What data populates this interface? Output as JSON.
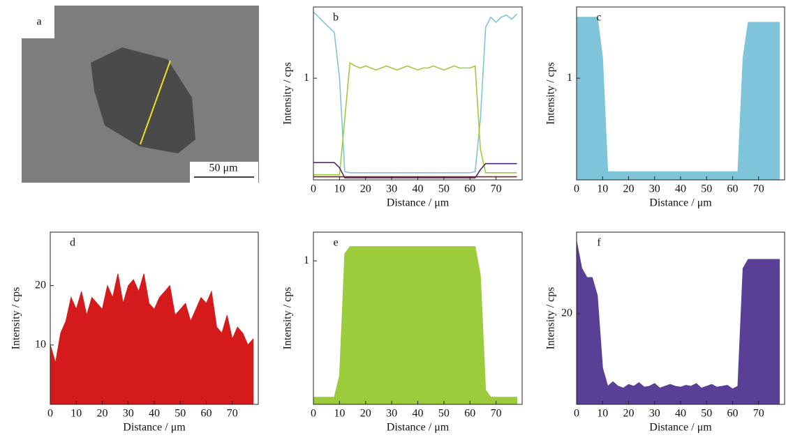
{
  "image_panel": {
    "label": "a",
    "scale_bar": "50 μm"
  },
  "chart_data": [
    {
      "type": "line",
      "label": "b",
      "x_label": "Distance / μm",
      "y_label": "Intensity / cps",
      "xlim": [
        0,
        80
      ],
      "xticks": [
        0,
        10,
        20,
        30,
        40,
        50,
        60,
        70
      ],
      "ylim": [
        0,
        1.7
      ],
      "yticks": [
        1
      ],
      "x": [
        0,
        2,
        4,
        6,
        8,
        10,
        12,
        14,
        16,
        18,
        20,
        22,
        24,
        26,
        28,
        30,
        32,
        34,
        36,
        38,
        40,
        42,
        44,
        46,
        48,
        50,
        52,
        54,
        56,
        58,
        60,
        62,
        64,
        66,
        68,
        70,
        72,
        74,
        76,
        78
      ],
      "series": [
        {
          "color": "#7fc4d8",
          "values": [
            1.65,
            1.6,
            1.55,
            1.5,
            1.45,
            1.0,
            0.08,
            0.07,
            0.07,
            0.07,
            0.07,
            0.07,
            0.07,
            0.07,
            0.07,
            0.07,
            0.07,
            0.07,
            0.07,
            0.07,
            0.07,
            0.07,
            0.07,
            0.07,
            0.07,
            0.07,
            0.07,
            0.07,
            0.07,
            0.07,
            0.07,
            0.08,
            0.6,
            1.5,
            1.6,
            1.55,
            1.6,
            1.62,
            1.58,
            1.63
          ]
        },
        {
          "color": "#9ccc3c",
          "values": [
            0.05,
            0.05,
            0.05,
            0.05,
            0.05,
            0.05,
            0.6,
            1.15,
            1.12,
            1.1,
            1.12,
            1.1,
            1.08,
            1.1,
            1.12,
            1.1,
            1.08,
            1.1,
            1.12,
            1.1,
            1.08,
            1.1,
            1.1,
            1.12,
            1.1,
            1.08,
            1.1,
            1.12,
            1.1,
            1.1,
            1.1,
            1.12,
            0.3,
            0.07,
            0.07,
            0.07,
            0.07,
            0.07,
            0.07,
            0.07
          ]
        },
        {
          "color": "#4b2a7a",
          "values": [
            0.17,
            0.17,
            0.17,
            0.17,
            0.17,
            0.12,
            0.02,
            0.02,
            0.02,
            0.02,
            0.02,
            0.02,
            0.02,
            0.02,
            0.02,
            0.02,
            0.02,
            0.02,
            0.02,
            0.02,
            0.02,
            0.02,
            0.02,
            0.02,
            0.02,
            0.02,
            0.02,
            0.02,
            0.02,
            0.02,
            0.02,
            0.02,
            0.1,
            0.16,
            0.16,
            0.16,
            0.16,
            0.16,
            0.16,
            0.16
          ]
        },
        {
          "color": "#8b1a1a",
          "values": [
            0.03,
            0.03,
            0.03,
            0.03,
            0.03,
            0.03,
            0.03,
            0.03,
            0.03,
            0.03,
            0.03,
            0.03,
            0.03,
            0.03,
            0.03,
            0.03,
            0.03,
            0.03,
            0.03,
            0.03,
            0.03,
            0.03,
            0.03,
            0.03,
            0.03,
            0.03,
            0.03,
            0.03,
            0.03,
            0.03,
            0.03,
            0.03,
            0.03,
            0.03,
            0.03,
            0.03,
            0.03,
            0.03,
            0.03,
            0.03
          ]
        }
      ]
    },
    {
      "type": "area",
      "label": "c",
      "x_label": "Distance / μm",
      "y_label": "Intensity / cps",
      "xlim": [
        0,
        80
      ],
      "xticks": [
        0,
        10,
        20,
        30,
        40,
        50,
        60,
        70
      ],
      "ylim": [
        0,
        1.7
      ],
      "yticks": [
        1
      ],
      "color": "#7fc4d8",
      "x": [
        0,
        2,
        4,
        6,
        8,
        10,
        12,
        14,
        16,
        18,
        20,
        22,
        24,
        26,
        28,
        30,
        32,
        34,
        36,
        38,
        40,
        42,
        44,
        46,
        48,
        50,
        52,
        54,
        56,
        58,
        60,
        62,
        64,
        66,
        68,
        70,
        72,
        74,
        76,
        78
      ],
      "values": [
        1.6,
        1.6,
        1.6,
        1.6,
        1.6,
        1.2,
        0.08,
        0.08,
        0.08,
        0.08,
        0.08,
        0.08,
        0.08,
        0.08,
        0.08,
        0.08,
        0.08,
        0.08,
        0.08,
        0.08,
        0.08,
        0.08,
        0.08,
        0.08,
        0.08,
        0.08,
        0.08,
        0.08,
        0.08,
        0.08,
        0.08,
        0.08,
        1.2,
        1.55,
        1.55,
        1.55,
        1.55,
        1.55,
        1.55,
        1.55
      ]
    },
    {
      "type": "area",
      "label": "d",
      "x_label": "Distance / μm",
      "y_label": "Intensity / cps",
      "xlim": [
        0,
        80
      ],
      "xticks": [
        0,
        10,
        20,
        30,
        40,
        50,
        60,
        70
      ],
      "ylim": [
        0,
        29
      ],
      "yticks": [
        10,
        20
      ],
      "color": "#d41a1a",
      "x": [
        0,
        2,
        4,
        6,
        8,
        10,
        12,
        14,
        16,
        18,
        20,
        22,
        24,
        26,
        28,
        30,
        32,
        34,
        36,
        38,
        40,
        42,
        44,
        46,
        48,
        50,
        52,
        54,
        56,
        58,
        60,
        62,
        64,
        66,
        68,
        70,
        72,
        74,
        76,
        78
      ],
      "values": [
        10,
        7,
        12,
        14,
        18,
        16,
        19,
        15,
        18,
        17,
        16,
        20,
        18,
        22,
        17,
        20,
        21,
        19,
        22,
        17,
        16,
        18,
        19,
        20,
        15,
        16,
        17,
        14,
        16,
        18,
        17,
        19,
        13,
        12,
        15,
        11,
        13,
        12,
        10,
        11
      ]
    },
    {
      "type": "area",
      "label": "e",
      "x_label": "Distance / μm",
      "y_label": "Intensity / cps",
      "xlim": [
        0,
        80
      ],
      "xticks": [
        0,
        10,
        20,
        30,
        40,
        50,
        60,
        70
      ],
      "ylim": [
        0,
        1.2
      ],
      "yticks": [
        1
      ],
      "color": "#9ccc3c",
      "x": [
        0,
        2,
        4,
        6,
        8,
        10,
        12,
        14,
        16,
        18,
        20,
        22,
        24,
        26,
        28,
        30,
        32,
        34,
        36,
        38,
        40,
        42,
        44,
        46,
        48,
        50,
        52,
        54,
        56,
        58,
        60,
        62,
        64,
        66,
        68,
        70,
        72,
        74,
        76,
        78
      ],
      "values": [
        0.05,
        0.05,
        0.05,
        0.05,
        0.05,
        0.2,
        1.05,
        1.1,
        1.1,
        1.1,
        1.1,
        1.1,
        1.1,
        1.1,
        1.1,
        1.1,
        1.1,
        1.1,
        1.1,
        1.1,
        1.1,
        1.1,
        1.1,
        1.1,
        1.1,
        1.1,
        1.1,
        1.1,
        1.1,
        1.1,
        1.1,
        1.1,
        0.9,
        0.1,
        0.05,
        0.05,
        0.05,
        0.05,
        0.05,
        0.05
      ]
    },
    {
      "type": "area",
      "label": "f",
      "x_label": "Distance / μm",
      "y_label": "Intensity / cps",
      "xlim": [
        0,
        80
      ],
      "xticks": [
        0,
        10,
        20,
        30,
        40,
        50,
        60,
        70
      ],
      "ylim": [
        10,
        29
      ],
      "yticks": [
        20
      ],
      "color": "#5a3f96",
      "x": [
        0,
        2,
        4,
        6,
        8,
        10,
        12,
        14,
        16,
        18,
        20,
        22,
        24,
        26,
        28,
        30,
        32,
        34,
        36,
        38,
        40,
        42,
        44,
        46,
        48,
        50,
        52,
        54,
        56,
        58,
        60,
        62,
        64,
        66,
        68,
        70,
        72,
        74,
        76,
        78
      ],
      "values": [
        28,
        25,
        24,
        24,
        22,
        14,
        12,
        12.5,
        12,
        11.8,
        12.2,
        12,
        12.4,
        11.9,
        12,
        12.3,
        11.8,
        12,
        12.2,
        12,
        11.9,
        12.1,
        12,
        12.3,
        11.8,
        12,
        12.2,
        11.9,
        12,
        12.1,
        11.7,
        12,
        25,
        26,
        26,
        26,
        26,
        26,
        26,
        26
      ]
    }
  ]
}
